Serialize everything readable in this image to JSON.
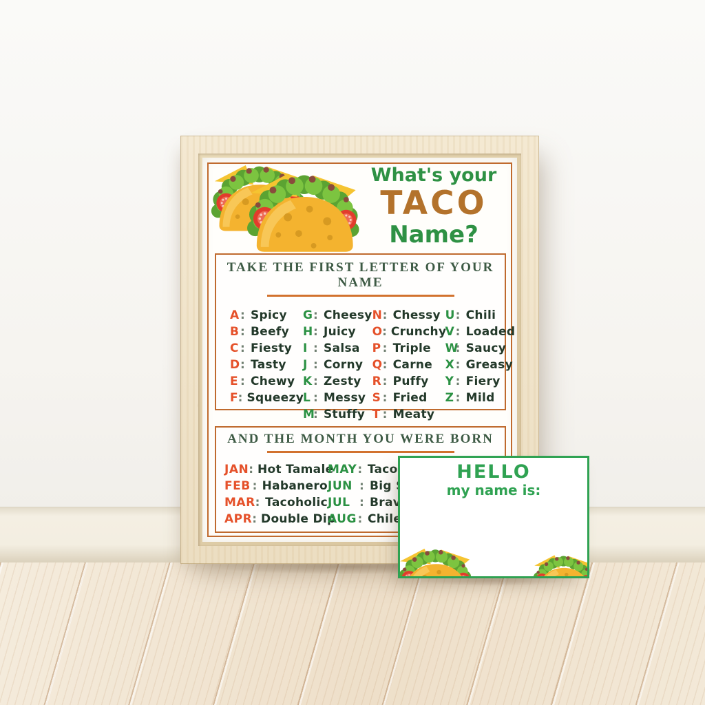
{
  "poster": {
    "title_line1": "What's your",
    "title_line2": "TACO",
    "title_line3": "Name?",
    "letters_heading": "TAKE THE FIRST LETTER OF YOUR NAME",
    "letters_columns": [
      {
        "color": "orange",
        "entries": [
          [
            "A",
            "Spicy"
          ],
          [
            "B",
            "Beefy"
          ],
          [
            "C",
            "Fiesty"
          ],
          [
            "D",
            "Tasty"
          ],
          [
            "E",
            "Chewy"
          ],
          [
            "F",
            "Squeezy"
          ]
        ]
      },
      {
        "color": "green",
        "entries": [
          [
            "G",
            "Cheesy"
          ],
          [
            "H",
            "Juicy"
          ],
          [
            "I",
            "Salsa"
          ],
          [
            "J",
            "Corny"
          ],
          [
            "K",
            "Zesty"
          ],
          [
            "L",
            "Messy"
          ],
          [
            "M",
            "Stuffy"
          ]
        ]
      },
      {
        "color": "orange",
        "entries": [
          [
            "N",
            "Chessy"
          ],
          [
            "O",
            "Crunchy"
          ],
          [
            "P",
            "Triple"
          ],
          [
            "Q",
            "Carne"
          ],
          [
            "R",
            "Puffy"
          ],
          [
            "S",
            "Fried"
          ],
          [
            "T",
            "Meaty"
          ]
        ]
      },
      {
        "color": "green",
        "entries": [
          [
            "U",
            "Chili"
          ],
          [
            "V",
            "Loaded"
          ],
          [
            "W",
            "Saucy"
          ],
          [
            "X",
            "Greasy"
          ],
          [
            "Y",
            "Fiery"
          ],
          [
            "Z",
            "Mild"
          ]
        ]
      }
    ],
    "months_heading": "AND THE MONTH YOU WERE BORN",
    "months_columns": [
      {
        "color": "orange",
        "entries": [
          [
            "JAN",
            "Hot Tamale"
          ],
          [
            "FEB",
            "Habanero"
          ],
          [
            "MAR",
            "Tacoholic"
          ],
          [
            "APR",
            "Double Dip"
          ]
        ]
      },
      {
        "color": "green",
        "entries": [
          [
            "MAY",
            "Tacobella"
          ],
          [
            "JUN",
            "Big Scoo"
          ],
          [
            "JUL",
            "Bravoca"
          ],
          [
            "AUG",
            "Chilejand"
          ]
        ]
      }
    ]
  },
  "card": {
    "heading": "HELLO",
    "subheading": "my name is:"
  },
  "colors": {
    "title_green": "#2e9144",
    "title_brown": "#b3722b",
    "letter_orange": "#e5512a",
    "letter_green": "#2b9143",
    "word_dark": "#23392a",
    "box_border_orange": "#bf6a2e",
    "heading_rule_orange": "#d2722e",
    "heading_serif_green": "#3d5a44",
    "card_green": "#2fa252",
    "taco_shell": "#f4b32f",
    "taco_cheese": "#f5c431",
    "taco_lettuce": "#7cc440",
    "taco_tomato": "#e23c2c"
  }
}
